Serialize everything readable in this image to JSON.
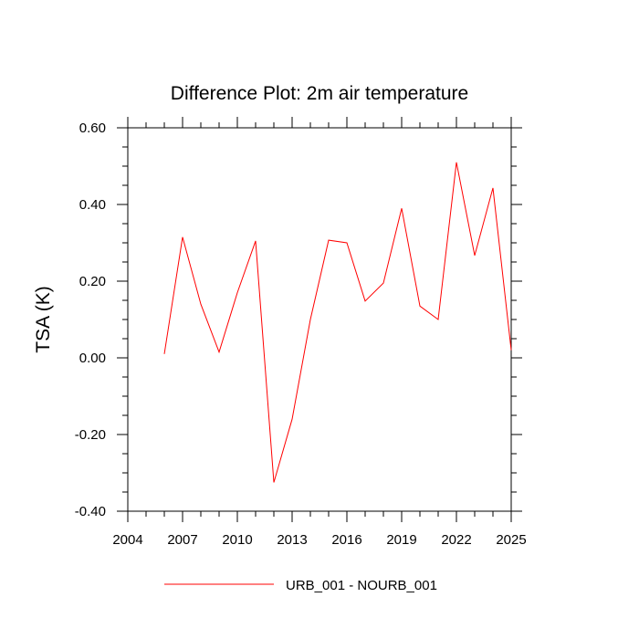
{
  "chart_data": {
    "type": "line",
    "title": "Difference Plot: 2m air temperature",
    "xlabel": "",
    "ylabel": "TSA  (K)",
    "xlim": [
      2004,
      2025
    ],
    "ylim": [
      -0.4,
      0.6
    ],
    "xticks": [
      2004,
      2007,
      2010,
      2013,
      2016,
      2019,
      2022,
      2025
    ],
    "xtick_labels": [
      "2004",
      "2007",
      "2010",
      "2013",
      "2016",
      "2019",
      "2022",
      "2025"
    ],
    "yticks": [
      -0.4,
      -0.2,
      0.0,
      0.2,
      0.4,
      0.6
    ],
    "ytick_labels": [
      "-0.40",
      "-0.20",
      "0.00",
      "0.20",
      "0.40",
      "0.60"
    ],
    "grid": false,
    "legend_position": "bottom",
    "series": [
      {
        "name": "URB_001 - NOURB_001",
        "color": "#ff0000",
        "x": [
          2006,
          2007,
          2008,
          2009,
          2010,
          2011,
          2012,
          2013,
          2014,
          2015,
          2016,
          2017,
          2018,
          2019,
          2020,
          2021,
          2022,
          2023,
          2024,
          2025
        ],
        "y": [
          0.01,
          0.315,
          0.14,
          0.015,
          0.17,
          0.305,
          -0.325,
          -0.16,
          0.1,
          0.307,
          0.3,
          0.148,
          0.195,
          0.39,
          0.135,
          0.1,
          0.51,
          0.267,
          0.443,
          0.02
        ]
      }
    ]
  }
}
